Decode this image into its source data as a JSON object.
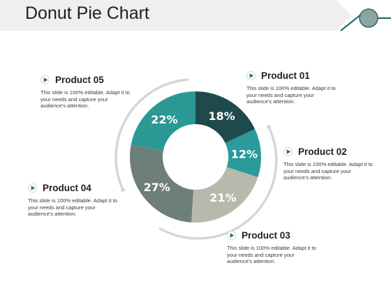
{
  "header": {
    "title": "Donut Pie Chart",
    "colors": {
      "band": "#efefef",
      "line": "#2a6a6e",
      "circle": "#8fa3a2"
    },
    "icon": "circle-node-icon"
  },
  "products": [
    {
      "name": "Product 01",
      "desc": "This slide is 100% editable. Adapt it to your needs and capture your audience's attention.",
      "icon": "play-bullet-icon"
    },
    {
      "name": "Product 02",
      "desc": "This slide is 100% editable. Adapt it to your needs and capture your audience's attention.",
      "icon": "play-bullet-icon"
    },
    {
      "name": "Product 03",
      "desc": "This slide is 100% editable. Adapt it to your needs and capture your audience's attention.",
      "icon": "play-bullet-icon"
    },
    {
      "name": "Product 04",
      "desc": "This slide is 100% editable. Adapt it to your needs and capture your audience's attention.",
      "icon": "play-bullet-icon"
    },
    {
      "name": "Product 05",
      "desc": "This slide is 100% editable. Adapt it to your needs and capture your audience's attention.",
      "icon": "play-bullet-icon"
    }
  ],
  "chart_data": {
    "type": "pie",
    "donut": true,
    "title": "",
    "series": [
      {
        "values": [
          18,
          12,
          21,
          27,
          22
        ]
      }
    ],
    "labels": [
      "18%",
      "12%",
      "21%",
      "27%",
      "22%"
    ],
    "colors": [
      "#1f4a4c",
      "#2a9a9a",
      "#b9b8ad",
      "#6e7f79",
      "#2b9896"
    ],
    "order": "clockwise from top",
    "decorative_arc_color": "#d4d4d4"
  }
}
